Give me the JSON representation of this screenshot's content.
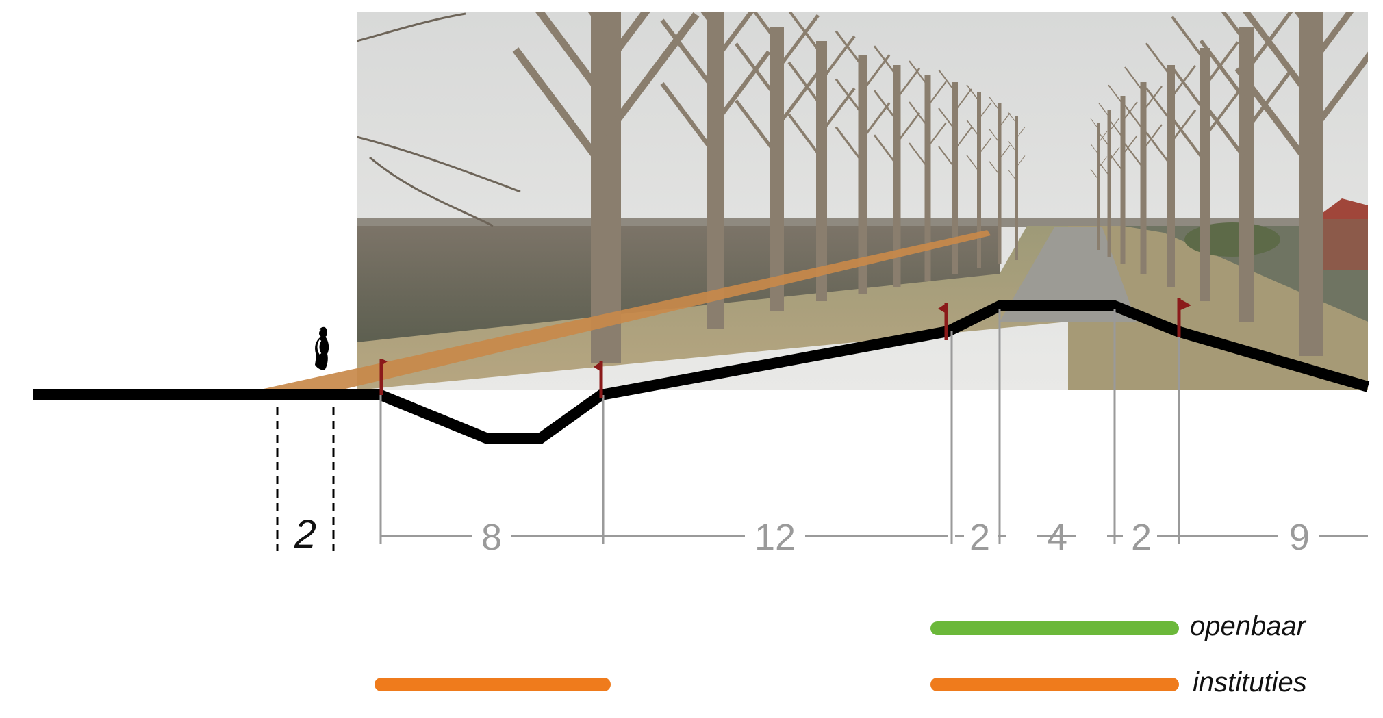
{
  "photo": {
    "description_icon": "landscape-photo-backdrop"
  },
  "dimensions": {
    "foreground_width": "2",
    "segments": [
      "8",
      "12",
      "2",
      "4",
      "2",
      "9"
    ]
  },
  "legend": {
    "items": [
      {
        "label": "openbaar",
        "color": "#6bb83a"
      },
      {
        "label": "instituties",
        "color": "#ef7b1c"
      }
    ]
  },
  "colors": {
    "profile": "#000000",
    "sightline": "#c88a4a",
    "flag": "#8b1a1a",
    "dimension": "#9a9a9a",
    "sky": "#dcdcdc",
    "field": "#6a6a5a",
    "grass": "#a59a78",
    "road": "#9a9a94",
    "tree": "#8a7e70"
  },
  "icons": [
    "person-icon",
    "flag-icon"
  ]
}
